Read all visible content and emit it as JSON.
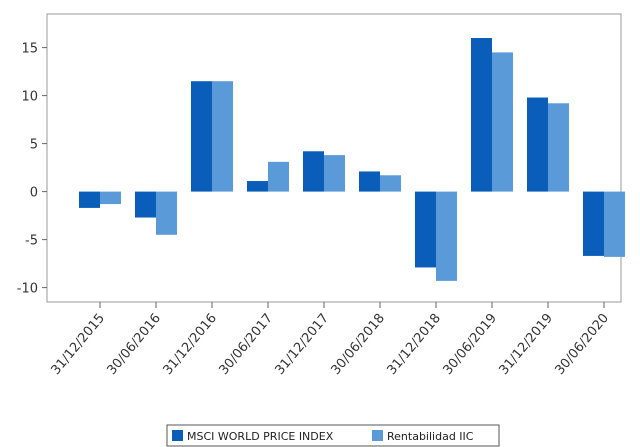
{
  "chart_data": {
    "type": "bar",
    "categories": [
      "31/12/2015",
      "30/06/2016",
      "31/12/2016",
      "30/06/2017",
      "31/12/2017",
      "30/06/2018",
      "31/12/2018",
      "30/06/2019",
      "31/12/2019",
      "30/06/2020"
    ],
    "series": [
      {
        "name": "MSCI WORLD PRICE INDEX",
        "color": "#0a5db8",
        "values": [
          -1.7,
          -2.7,
          11.5,
          1.1,
          4.2,
          2.1,
          -7.9,
          16.0,
          9.8,
          -6.7
        ]
      },
      {
        "name": "Rentabilidad IIC",
        "color": "#5a9ad8",
        "values": [
          -1.3,
          -4.5,
          11.5,
          3.1,
          3.8,
          1.7,
          -9.3,
          14.5,
          9.2,
          -6.8
        ]
      }
    ],
    "yticks": [
      15,
      10,
      5,
      0,
      -5,
      -10
    ],
    "ylim": [
      -11.5,
      18.5
    ],
    "title": "",
    "xlabel": "",
    "ylabel": "",
    "grid": false,
    "legend": "bottom"
  }
}
